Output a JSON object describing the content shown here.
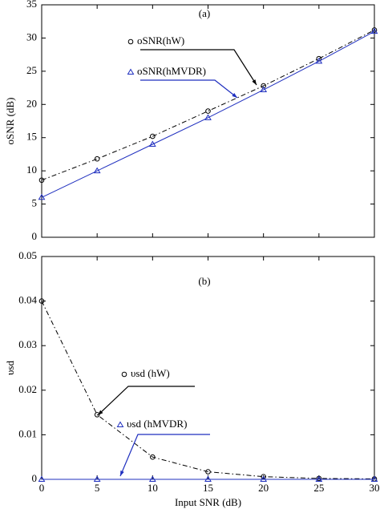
{
  "chart_data": [
    {
      "type": "line",
      "annotation": "(a)",
      "ylabel": "oSNR (dB)",
      "x": [
        0,
        5,
        10,
        15,
        20,
        25,
        30
      ],
      "series": [
        {
          "name": "oSNR(hW)",
          "color": "#000000",
          "linestyle": "-.",
          "marker": "o",
          "values": [
            8.6,
            11.8,
            15.2,
            19,
            22.8,
            26.9,
            31.2
          ]
        },
        {
          "name": "oSNR(hMVDR)",
          "color": "#1f2fbf",
          "linestyle": "-",
          "marker": "^",
          "values": [
            6,
            10,
            14,
            18,
            22.2,
            26.5,
            31
          ]
        }
      ],
      "xlim": [
        0,
        30
      ],
      "xticks": [
        0,
        5,
        10,
        15,
        20,
        25,
        30
      ],
      "ylim": [
        0,
        35
      ],
      "yticks": [
        0,
        5,
        10,
        15,
        20,
        25,
        30,
        35
      ]
    },
    {
      "type": "line",
      "annotation": "(b)",
      "ylabel": "υsd",
      "xlabel": "Input SNR (dB)",
      "x": [
        0,
        5,
        10,
        15,
        20,
        25,
        30
      ],
      "series": [
        {
          "name": "υsd (hW)",
          "color": "#000000",
          "linestyle": "-.",
          "marker": "o",
          "values": [
            0.04,
            0.0145,
            0.005,
            0.0017,
            0.0006,
            0.0002,
            0.0001
          ]
        },
        {
          "name": "υsd (hMVDR)",
          "color": "#1f2fbf",
          "linestyle": "-",
          "marker": "^",
          "values": [
            0,
            0,
            0,
            0,
            0,
            0,
            0
          ]
        }
      ],
      "xlim": [
        0,
        30
      ],
      "xticks": [
        0,
        5,
        10,
        15,
        20,
        25,
        30
      ],
      "ylim": [
        0,
        0.05
      ],
      "yticks": [
        0,
        0.01,
        0.02,
        0.03,
        0.04,
        0.05
      ]
    }
  ]
}
